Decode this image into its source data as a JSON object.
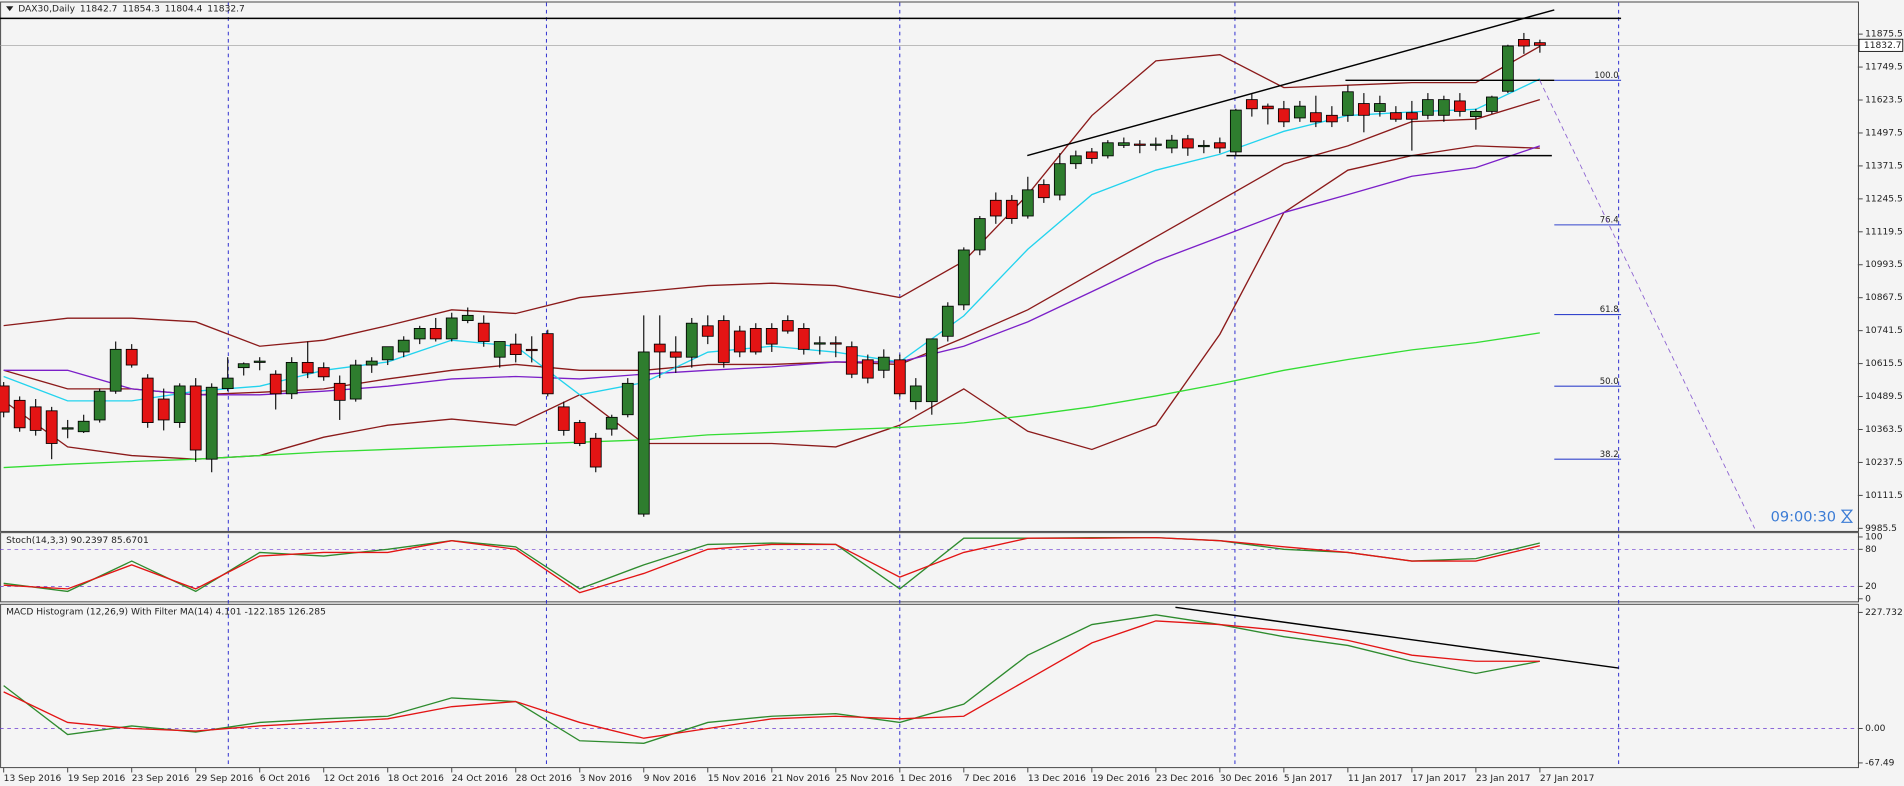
{
  "chart_data": [
    {
      "type": "candlestick",
      "title": "DAX30,Daily",
      "up_color": "#2e7d2e",
      "down_color": "#e31414",
      "xlim": [
        -0.23,
        115.87
      ],
      "ylim": [
        9976,
        11996
      ],
      "yticks": [
        9985.5,
        10111.5,
        10237.5,
        10363.5,
        10489.5,
        10615.5,
        10741.5,
        10867.5,
        10993.5,
        11119.5,
        11245.5,
        11371.5,
        11497.5,
        11623.5,
        11749.5,
        11875.5
      ],
      "ohlc": [
        [
          10530,
          10545,
          10410,
          10430
        ],
        [
          10475,
          10490,
          10355,
          10370
        ],
        [
          10450,
          10480,
          10340,
          10360
        ],
        [
          10435,
          10450,
          10250,
          10310
        ],
        [
          10365,
          10400,
          10330,
          10370
        ],
        [
          10355,
          10420,
          10350,
          10395
        ],
        [
          10400,
          10520,
          10390,
          10510
        ],
        [
          10510,
          10700,
          10500,
          10670
        ],
        [
          10670,
          10690,
          10600,
          10610
        ],
        [
          10560,
          10575,
          10370,
          10390
        ],
        [
          10480,
          10520,
          10360,
          10400
        ],
        [
          10390,
          10540,
          10370,
          10530
        ],
        [
          10530,
          10560,
          10240,
          10285
        ],
        [
          10250,
          10540,
          10200,
          10525
        ],
        [
          10520,
          10640,
          10510,
          10560
        ],
        [
          10600,
          10620,
          10570,
          10615
        ],
        [
          10620,
          10640,
          10590,
          10625
        ],
        [
          10575,
          10590,
          10440,
          10500
        ],
        [
          10500,
          10640,
          10480,
          10620
        ],
        [
          10620,
          10700,
          10560,
          10580
        ],
        [
          10600,
          10620,
          10550,
          10565
        ],
        [
          10540,
          10570,
          10400,
          10475
        ],
        [
          10480,
          10630,
          10470,
          10610
        ],
        [
          10610,
          10640,
          10580,
          10625
        ],
        [
          10630,
          10680,
          10610,
          10680
        ],
        [
          10660,
          10720,
          10640,
          10705
        ],
        [
          10710,
          10760,
          10690,
          10750
        ],
        [
          10750,
          10790,
          10700,
          10710
        ],
        [
          10710,
          10810,
          10700,
          10790
        ],
        [
          10780,
          10830,
          10770,
          10800
        ],
        [
          10770,
          10800,
          10680,
          10700
        ],
        [
          10640,
          10700,
          10600,
          10700
        ],
        [
          10690,
          10730,
          10620,
          10650
        ],
        [
          10670,
          10720,
          10620,
          10665
        ],
        [
          10730,
          10745,
          10490,
          10500
        ],
        [
          10450,
          10470,
          10340,
          10360
        ],
        [
          10390,
          10400,
          10300,
          10310
        ],
        [
          10330,
          10350,
          10200,
          10220
        ],
        [
          10365,
          10420,
          10340,
          10410
        ],
        [
          10420,
          10560,
          10410,
          10540
        ],
        [
          10040,
          10800,
          10030,
          10660
        ],
        [
          10690,
          10800,
          10560,
          10660
        ],
        [
          10660,
          10720,
          10580,
          10640
        ],
        [
          10640,
          10790,
          10600,
          10770
        ],
        [
          10760,
          10800,
          10690,
          10720
        ],
        [
          10780,
          10800,
          10600,
          10620
        ],
        [
          10740,
          10760,
          10640,
          10660
        ],
        [
          10750,
          10770,
          10650,
          10660
        ],
        [
          10750,
          10770,
          10660,
          10690
        ],
        [
          10780,
          10800,
          10730,
          10740
        ],
        [
          10750,
          10770,
          10650,
          10670
        ],
        [
          10690,
          10720,
          10650,
          10695
        ],
        [
          10695,
          10720,
          10640,
          10690
        ],
        [
          10680,
          10700,
          10560,
          10575
        ],
        [
          10630,
          10650,
          10540,
          10560
        ],
        [
          10590,
          10670,
          10560,
          10640
        ],
        [
          10630,
          10650,
          10490,
          10500
        ],
        [
          10470,
          10560,
          10440,
          10530
        ],
        [
          10470,
          10700,
          10420,
          10710
        ],
        [
          10720,
          10850,
          10700,
          10835
        ],
        [
          10840,
          11060,
          10820,
          11050
        ],
        [
          11050,
          11180,
          11030,
          11170
        ],
        [
          11240,
          11270,
          11150,
          11180
        ],
        [
          11240,
          11260,
          11150,
          11170
        ],
        [
          11180,
          11330,
          11170,
          11280
        ],
        [
          11300,
          11320,
          11230,
          11250
        ],
        [
          11260,
          11420,
          11240,
          11380
        ],
        [
          11380,
          11430,
          11360,
          11410
        ],
        [
          11425,
          11440,
          11380,
          11400
        ],
        [
          11410,
          11470,
          11400,
          11460
        ],
        [
          11450,
          11480,
          11440,
          11460
        ],
        [
          11455,
          11470,
          11420,
          11450
        ],
        [
          11450,
          11480,
          11430,
          11455
        ],
        [
          11440,
          11490,
          11420,
          11470
        ],
        [
          11475,
          11490,
          11410,
          11440
        ],
        [
          11445,
          11470,
          11420,
          11450
        ],
        [
          11460,
          11480,
          11420,
          11440
        ],
        [
          11425,
          11590,
          11410,
          11585
        ],
        [
          11625,
          11650,
          11560,
          11590
        ],
        [
          11600,
          11610,
          11530,
          11590
        ],
        [
          11590,
          11620,
          11520,
          11540
        ],
        [
          11555,
          11620,
          11540,
          11600
        ],
        [
          11575,
          11640,
          11520,
          11540
        ],
        [
          11565,
          11600,
          11520,
          11540
        ],
        [
          11565,
          11680,
          11540,
          11655
        ],
        [
          11610,
          11650,
          11500,
          11565
        ],
        [
          11580,
          11640,
          11560,
          11610
        ],
        [
          11575,
          11600,
          11540,
          11550
        ],
        [
          11575,
          11620,
          11430,
          11550
        ],
        [
          11565,
          11650,
          11550,
          11625
        ],
        [
          11565,
          11640,
          11540,
          11625
        ],
        [
          11620,
          11650,
          11560,
          11580
        ],
        [
          11560,
          11590,
          11510,
          11580
        ],
        [
          11580,
          11640,
          11570,
          11635
        ],
        [
          11657,
          11835,
          11650,
          11830
        ],
        [
          11855,
          11880,
          11800,
          11830
        ],
        [
          11842.7,
          11854.3,
          11804.4,
          11832.7
        ]
      ],
      "indicator_x": [
        0,
        4,
        8,
        12,
        16,
        20,
        24,
        28,
        32,
        36,
        40,
        44,
        48,
        52,
        56,
        60,
        64,
        68,
        72,
        76,
        80,
        84,
        88,
        92,
        96
      ],
      "series": [
        {
          "color": "#8b1a1a",
          "values": [
            10761,
            10789,
            10789,
            10775,
            10682,
            10705,
            10761,
            10821,
            10807,
            10868,
            10891,
            10914,
            10923,
            10914,
            10868,
            11007,
            11262,
            11564,
            11773,
            11797,
            11671,
            11680,
            11690,
            11690,
            11829
          ]
        },
        {
          "color": "#8b1a1a",
          "values": [
            10590,
            10519,
            10519,
            10496,
            10506,
            10519,
            10557,
            10590,
            10612,
            10590,
            10590,
            10612,
            10612,
            10622,
            10612,
            10714,
            10821,
            10961,
            11100,
            11239,
            11379,
            11448,
            11541,
            11550,
            11625
          ]
        },
        {
          "color": "#8b1a1a",
          "values": [
            10473,
            10297,
            10264,
            10250,
            10264,
            10334,
            10380,
            10403,
            10380,
            10496,
            10310,
            10310,
            10310,
            10297,
            10380,
            10519,
            10357,
            10287,
            10380,
            10728,
            11193,
            11355,
            11411,
            11448,
            11439
          ]
        },
        {
          "color": "#7b1fc8",
          "values": [
            10590,
            10590,
            10519,
            10496,
            10496,
            10510,
            10529,
            10557,
            10566,
            10557,
            10575,
            10590,
            10603,
            10622,
            10622,
            10682,
            10775,
            10891,
            11007,
            11100,
            11193,
            11262,
            11332,
            11365,
            11448
          ]
        },
        {
          "color": "#22d3ee",
          "values": [
            10566,
            10473,
            10473,
            10510,
            10529,
            10590,
            10622,
            10705,
            10682,
            10496,
            10543,
            10659,
            10682,
            10659,
            10622,
            10798,
            11053,
            11262,
            11355,
            11416,
            11504,
            11564,
            11578,
            11588,
            11704
          ]
        },
        {
          "color": "#33dd33",
          "values": [
            10218,
            10231,
            10241,
            10250,
            10264,
            10278,
            10287,
            10297,
            10306,
            10315,
            10324,
            10343,
            10352,
            10362,
            10371,
            10389,
            10417,
            10450,
            10492,
            10538,
            10590,
            10631,
            10668,
            10696,
            10733
          ]
        }
      ],
      "fib_levels": [
        {
          "value": 11699,
          "label": "100.0"
        },
        {
          "value": 11146,
          "label": "76.4"
        },
        {
          "value": 10803,
          "label": "61.8"
        },
        {
          "value": 10529,
          "label": "50.0"
        },
        {
          "value": 10250,
          "label": "38.2"
        }
      ],
      "fib_color": "#3344cc",
      "timer": "09:00:30"
    },
    {
      "type": "line",
      "title": "Stoch(14,3,3) 90.2397 85.6701",
      "xlim": [
        -0.23,
        115.87
      ],
      "ylim": [
        -4,
        106
      ],
      "yticks": [
        0,
        20,
        80,
        100
      ],
      "levels": [
        20,
        80
      ],
      "x": [
        0,
        4,
        8,
        12,
        16,
        20,
        24,
        28,
        32,
        36,
        40,
        44,
        48,
        52,
        56,
        60,
        64,
        68,
        72,
        76,
        80,
        84,
        88,
        92,
        96
      ],
      "series": [
        {
          "color": "#2e8b2e",
          "values": [
            25,
            12,
            61,
            12,
            75,
            69,
            80,
            94,
            84,
            16,
            55,
            88,
            90,
            88,
            16,
            98,
            98,
            99,
            99,
            94,
            80,
            75,
            61,
            65,
            90.2397
          ]
        },
        {
          "color": "#e31414",
          "values": [
            22,
            16,
            55,
            16,
            69,
            75,
            75,
            94,
            80,
            10,
            41,
            80,
            88,
            88,
            35,
            75,
            98,
            98,
            99,
            94,
            84,
            75,
            61,
            61,
            85.6701
          ]
        }
      ]
    },
    {
      "type": "line",
      "title": "MACD Histogram (12,26,9) With Filter MA(14) 4.101 -122.185 126.285",
      "xlim": [
        -0.23,
        115.87
      ],
      "ylim": [
        -76.7,
        242.5
      ],
      "yticks": [
        -67.49,
        {
          "value": 0,
          "label": "0.00"
        },
        227.732
      ],
      "levels": [
        0
      ],
      "x": [
        0,
        4,
        8,
        12,
        16,
        20,
        24,
        28,
        32,
        36,
        40,
        44,
        48,
        52,
        56,
        60,
        64,
        68,
        72,
        76,
        80,
        84,
        88,
        92,
        96
      ],
      "xticks": [
        {
          "value": 0,
          "label": "13 Sep 2016"
        },
        {
          "value": 4,
          "label": "19 Sep 2016"
        },
        {
          "value": 8,
          "label": "23 Sep 2016"
        },
        {
          "value": 12,
          "label": "29 Sep 2016"
        },
        {
          "value": 16,
          "label": "6 Oct 2016"
        },
        {
          "value": 20,
          "label": "12 Oct 2016"
        },
        {
          "value": 24,
          "label": "18 Oct 2016"
        },
        {
          "value": 28,
          "label": "24 Oct 2016"
        },
        {
          "value": 32,
          "label": "28 Oct 2016"
        },
        {
          "value": 36,
          "label": "3 Nov 2016"
        },
        {
          "value": 40,
          "label": "9 Nov 2016"
        },
        {
          "value": 44,
          "label": "15 Nov 2016"
        },
        {
          "value": 48,
          "label": "21 Nov 2016"
        },
        {
          "value": 52,
          "label": "25 Nov 2016"
        },
        {
          "value": 56,
          "label": "1 Dec 2016"
        },
        {
          "value": 60,
          "label": "7 Dec 2016"
        },
        {
          "value": 64,
          "label": "13 Dec 2016"
        },
        {
          "value": 68,
          "label": "19 Dec 2016"
        },
        {
          "value": 72,
          "label": "23 Dec 2016"
        },
        {
          "value": 76,
          "label": "30 Dec 2016"
        },
        {
          "value": 80,
          "label": "5 Jan 2017"
        },
        {
          "value": 84,
          "label": "11 Jan 2017"
        },
        {
          "value": 88,
          "label": "17 Jan 2017"
        },
        {
          "value": 92,
          "label": "23 Jan 2017"
        },
        {
          "value": 96,
          "label": "27 Jan 2017"
        }
      ],
      "series": [
        {
          "color": "#2e8b2e",
          "values": [
            84,
            -12,
            5,
            -7,
            12,
            19,
            24,
            60,
            53,
            -24,
            -29,
            12,
            24,
            29,
            12,
            48,
            144,
            204,
            223,
            204,
            180,
            163,
            132,
            108,
            132
          ]
        },
        {
          "color": "#e31414",
          "values": [
            72,
            12,
            0,
            -5,
            5,
            12,
            19,
            43,
            53,
            12,
            -19,
            0,
            19,
            24,
            19,
            24,
            96,
            168,
            211,
            204,
            192,
            173,
            144,
            132,
            132
          ]
        }
      ]
    }
  ]
}
